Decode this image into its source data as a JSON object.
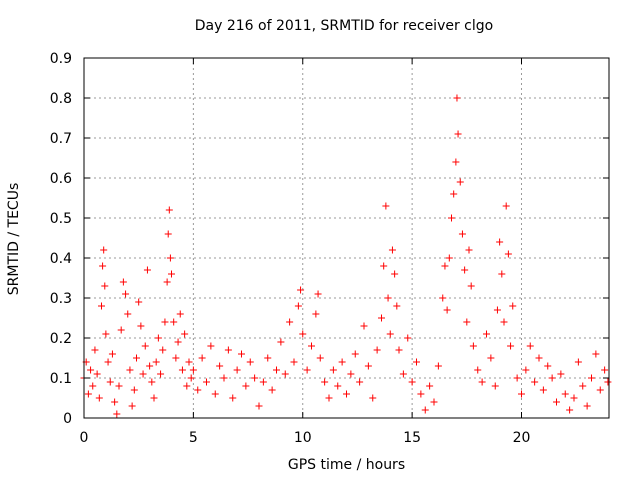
{
  "chart_data": {
    "type": "scatter",
    "title": "Day 216 of 2011, SRMTID for receiver clgo",
    "xlabel": "GPS time / hours",
    "ylabel": "SRMTID / TECUs",
    "xlim": [
      0,
      24
    ],
    "ylim": [
      0,
      0.9
    ],
    "xticks": [
      0,
      5,
      10,
      15,
      20
    ],
    "yticks": [
      0,
      0.1,
      0.2,
      0.3,
      0.4,
      0.5,
      0.6,
      0.7,
      0.8,
      0.9
    ],
    "grid": true,
    "marker": "+",
    "color": "#ff0000",
    "series": [
      {
        "name": "SRMTID",
        "points": [
          [
            0.0,
            0.1
          ],
          [
            0.1,
            0.14
          ],
          [
            0.2,
            0.06
          ],
          [
            0.3,
            0.12
          ],
          [
            0.4,
            0.08
          ],
          [
            0.5,
            0.17
          ],
          [
            0.6,
            0.11
          ],
          [
            0.7,
            0.05
          ],
          [
            0.8,
            0.28
          ],
          [
            0.85,
            0.38
          ],
          [
            0.9,
            0.42
          ],
          [
            0.95,
            0.33
          ],
          [
            1.0,
            0.21
          ],
          [
            1.1,
            0.14
          ],
          [
            1.2,
            0.09
          ],
          [
            1.3,
            0.16
          ],
          [
            1.4,
            0.04
          ],
          [
            1.5,
            0.01
          ],
          [
            1.6,
            0.08
          ],
          [
            1.7,
            0.22
          ],
          [
            1.8,
            0.34
          ],
          [
            1.9,
            0.31
          ],
          [
            2.0,
            0.26
          ],
          [
            2.1,
            0.12
          ],
          [
            2.2,
            0.03
          ],
          [
            2.3,
            0.07
          ],
          [
            2.4,
            0.15
          ],
          [
            2.5,
            0.29
          ],
          [
            2.6,
            0.23
          ],
          [
            2.7,
            0.11
          ],
          [
            2.8,
            0.18
          ],
          [
            2.9,
            0.37
          ],
          [
            3.0,
            0.13
          ],
          [
            3.1,
            0.09
          ],
          [
            3.2,
            0.05
          ],
          [
            3.3,
            0.14
          ],
          [
            3.4,
            0.2
          ],
          [
            3.5,
            0.11
          ],
          [
            3.6,
            0.17
          ],
          [
            3.7,
            0.24
          ],
          [
            3.8,
            0.34
          ],
          [
            3.85,
            0.46
          ],
          [
            3.9,
            0.52
          ],
          [
            3.95,
            0.4
          ],
          [
            4.0,
            0.36
          ],
          [
            4.1,
            0.24
          ],
          [
            4.2,
            0.15
          ],
          [
            4.3,
            0.19
          ],
          [
            4.4,
            0.26
          ],
          [
            4.5,
            0.12
          ],
          [
            4.6,
            0.21
          ],
          [
            4.7,
            0.08
          ],
          [
            4.8,
            0.14
          ],
          [
            4.9,
            0.1
          ],
          [
            5.0,
            0.12
          ],
          [
            5.2,
            0.07
          ],
          [
            5.4,
            0.15
          ],
          [
            5.6,
            0.09
          ],
          [
            5.8,
            0.18
          ],
          [
            6.0,
            0.06
          ],
          [
            6.2,
            0.13
          ],
          [
            6.4,
            0.1
          ],
          [
            6.6,
            0.17
          ],
          [
            6.8,
            0.05
          ],
          [
            7.0,
            0.12
          ],
          [
            7.2,
            0.16
          ],
          [
            7.4,
            0.08
          ],
          [
            7.6,
            0.14
          ],
          [
            7.8,
            0.1
          ],
          [
            8.0,
            0.03
          ],
          [
            8.2,
            0.09
          ],
          [
            8.4,
            0.15
          ],
          [
            8.6,
            0.07
          ],
          [
            8.8,
            0.12
          ],
          [
            9.0,
            0.19
          ],
          [
            9.2,
            0.11
          ],
          [
            9.4,
            0.24
          ],
          [
            9.6,
            0.14
          ],
          [
            9.8,
            0.28
          ],
          [
            9.9,
            0.32
          ],
          [
            10.0,
            0.21
          ],
          [
            10.2,
            0.12
          ],
          [
            10.4,
            0.18
          ],
          [
            10.6,
            0.26
          ],
          [
            10.7,
            0.31
          ],
          [
            10.8,
            0.15
          ],
          [
            11.0,
            0.09
          ],
          [
            11.2,
            0.05
          ],
          [
            11.4,
            0.12
          ],
          [
            11.6,
            0.08
          ],
          [
            11.8,
            0.14
          ],
          [
            12.0,
            0.06
          ],
          [
            12.2,
            0.11
          ],
          [
            12.4,
            0.16
          ],
          [
            12.6,
            0.09
          ],
          [
            12.8,
            0.23
          ],
          [
            13.0,
            0.13
          ],
          [
            13.2,
            0.05
          ],
          [
            13.4,
            0.17
          ],
          [
            13.6,
            0.25
          ],
          [
            13.7,
            0.38
          ],
          [
            13.8,
            0.53
          ],
          [
            13.9,
            0.3
          ],
          [
            14.0,
            0.21
          ],
          [
            14.1,
            0.42
          ],
          [
            14.2,
            0.36
          ],
          [
            14.3,
            0.28
          ],
          [
            14.4,
            0.17
          ],
          [
            14.6,
            0.11
          ],
          [
            14.8,
            0.2
          ],
          [
            15.0,
            0.09
          ],
          [
            15.2,
            0.14
          ],
          [
            15.4,
            0.06
          ],
          [
            15.6,
            0.02
          ],
          [
            15.8,
            0.08
          ],
          [
            16.0,
            0.04
          ],
          [
            16.2,
            0.13
          ],
          [
            16.4,
            0.3
          ],
          [
            16.5,
            0.38
          ],
          [
            16.6,
            0.27
          ],
          [
            16.7,
            0.4
          ],
          [
            16.8,
            0.5
          ],
          [
            16.9,
            0.56
          ],
          [
            17.0,
            0.64
          ],
          [
            17.05,
            0.8
          ],
          [
            17.1,
            0.71
          ],
          [
            17.2,
            0.59
          ],
          [
            17.3,
            0.46
          ],
          [
            17.4,
            0.37
          ],
          [
            17.5,
            0.24
          ],
          [
            17.6,
            0.42
          ],
          [
            17.7,
            0.33
          ],
          [
            17.8,
            0.18
          ],
          [
            18.0,
            0.12
          ],
          [
            18.2,
            0.09
          ],
          [
            18.4,
            0.21
          ],
          [
            18.6,
            0.15
          ],
          [
            18.8,
            0.08
          ],
          [
            18.9,
            0.27
          ],
          [
            19.0,
            0.44
          ],
          [
            19.1,
            0.36
          ],
          [
            19.2,
            0.24
          ],
          [
            19.3,
            0.53
          ],
          [
            19.4,
            0.41
          ],
          [
            19.5,
            0.18
          ],
          [
            19.6,
            0.28
          ],
          [
            19.8,
            0.1
          ],
          [
            20.0,
            0.06
          ],
          [
            20.2,
            0.12
          ],
          [
            20.4,
            0.18
          ],
          [
            20.6,
            0.09
          ],
          [
            20.8,
            0.15
          ],
          [
            21.0,
            0.07
          ],
          [
            21.2,
            0.13
          ],
          [
            21.4,
            0.1
          ],
          [
            21.6,
            0.04
          ],
          [
            21.8,
            0.11
          ],
          [
            22.0,
            0.06
          ],
          [
            22.2,
            0.02
          ],
          [
            22.4,
            0.05
          ],
          [
            22.6,
            0.14
          ],
          [
            22.8,
            0.08
          ],
          [
            23.0,
            0.03
          ],
          [
            23.2,
            0.1
          ],
          [
            23.4,
            0.16
          ],
          [
            23.6,
            0.07
          ],
          [
            23.8,
            0.12
          ],
          [
            23.95,
            0.09
          ]
        ]
      }
    ]
  }
}
